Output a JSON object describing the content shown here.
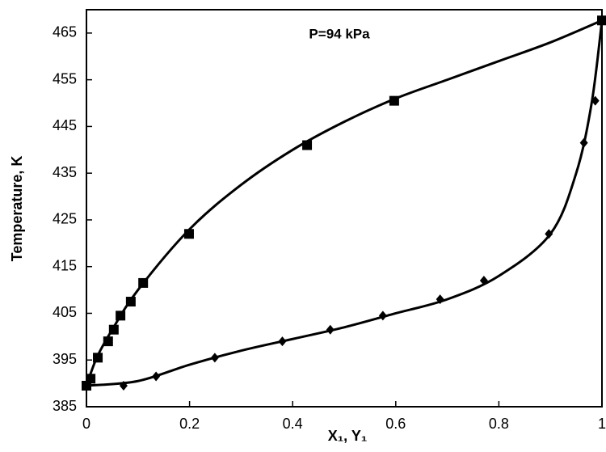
{
  "chart_data": {
    "type": "line",
    "title": "P=94 kPa",
    "xlabel": "X₁, Y₁",
    "ylabel": "Temperature, K",
    "xlim": [
      0,
      1
    ],
    "ylim": [
      385,
      470
    ],
    "xticks": [
      0,
      0.2,
      0.4,
      0.6,
      0.8,
      1
    ],
    "yticks": [
      385,
      395,
      405,
      415,
      425,
      435,
      445,
      455,
      465
    ],
    "series": [
      {
        "style": "line",
        "color": "#000000",
        "x": [
          0,
          0.02,
          0.05,
          0.1,
          0.2,
          0.3,
          0.4,
          0.5,
          0.6,
          0.7,
          0.8,
          0.9,
          1
        ],
        "values": [
          389.5,
          395.5,
          401.5,
          410,
          423,
          432.5,
          440,
          446,
          451,
          455,
          459,
          463,
          467.7
        ]
      },
      {
        "style": "line",
        "color": "#000000",
        "x": [
          0,
          0.1,
          0.2,
          0.3,
          0.4,
          0.5,
          0.6,
          0.7,
          0.8,
          0.9,
          0.95,
          0.98,
          1
        ],
        "values": [
          389.5,
          390.5,
          394,
          397,
          399.5,
          402,
          405,
          408,
          413,
          422,
          435,
          450,
          467.7
        ]
      },
      {
        "style": "square",
        "color": "#000000",
        "x": [
          0,
          0.008,
          0.022,
          0.042,
          0.053,
          0.066,
          0.086,
          0.11,
          0.199,
          0.428,
          0.597,
          1
        ],
        "values": [
          389.5,
          391,
          395.5,
          399,
          401.5,
          404.5,
          407.5,
          411.5,
          422,
          441,
          450.5,
          467.7
        ]
      },
      {
        "style": "diamond",
        "color": "#000000",
        "x": [
          0,
          0.072,
          0.135,
          0.249,
          0.38,
          0.473,
          0.575,
          0.686,
          0.771,
          0.897,
          0.965,
          0.987,
          1
        ],
        "values": [
          389.5,
          389.5,
          391.5,
          395.5,
          399,
          401.5,
          404.5,
          408,
          412,
          422,
          441.5,
          450.5,
          467.7
        ]
      }
    ]
  }
}
